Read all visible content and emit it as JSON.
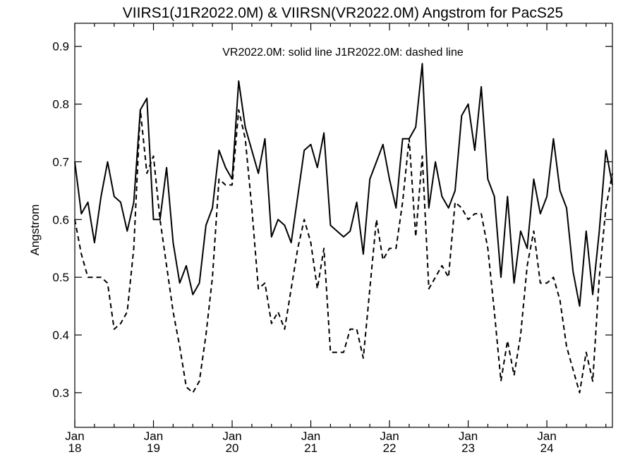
{
  "chart_data": {
    "type": "line",
    "title": "VIIRS1(J1R2022.0M) & VIIRSN(VR2022.0M)  Angstrom for PacS25",
    "xlabel": "",
    "ylabel": "Angstrom",
    "annotation": "VR2022.0M: solid line   J1R2022.0M: dashed line",
    "x_start": "2018-01",
    "x_step": "1 month",
    "xlim": [
      "2018-01",
      "2024-11"
    ],
    "ylim": [
      0.24,
      0.94
    ],
    "yticks": [
      0.3,
      0.4,
      0.5,
      0.6,
      0.7,
      0.8,
      0.9
    ],
    "ytick_labels": [
      "0.3",
      "0.4",
      "0.5",
      "0.6",
      "0.7",
      "0.8",
      "0.9"
    ],
    "xticks": [
      {
        "date": "2018-01",
        "month": "Jan",
        "year": "18"
      },
      {
        "date": "2019-01",
        "month": "Jan",
        "year": "19"
      },
      {
        "date": "2020-01",
        "month": "Jan",
        "year": "20"
      },
      {
        "date": "2021-01",
        "month": "Jan",
        "year": "21"
      },
      {
        "date": "2022-01",
        "month": "Jan",
        "year": "22"
      },
      {
        "date": "2023-01",
        "month": "Jan",
        "year": "23"
      },
      {
        "date": "2024-01",
        "month": "Jan",
        "year": "24"
      }
    ],
    "grid": false,
    "legend": "none",
    "series": [
      {
        "style": "solid",
        "color": "#000000",
        "values": [
          0.7,
          0.61,
          0.63,
          0.56,
          0.64,
          0.7,
          0.64,
          0.63,
          0.58,
          0.63,
          0.79,
          0.81,
          0.6,
          0.6,
          0.69,
          0.56,
          0.49,
          0.52,
          0.47,
          0.49,
          0.59,
          0.62,
          0.72,
          0.69,
          0.67,
          0.84,
          0.76,
          0.72,
          0.68,
          0.74,
          0.57,
          0.6,
          0.59,
          0.56,
          0.64,
          0.72,
          0.73,
          0.69,
          0.75,
          0.59,
          0.58,
          0.57,
          0.58,
          0.63,
          0.54,
          0.67,
          0.7,
          0.73,
          0.67,
          0.62,
          0.74,
          0.74,
          0.76,
          0.87,
          0.62,
          0.7,
          0.64,
          0.62,
          0.65,
          0.78,
          0.8,
          0.72,
          0.83,
          0.67,
          0.64,
          0.5,
          0.64,
          0.49,
          0.58,
          0.55,
          0.67,
          0.61,
          0.64,
          0.74,
          0.65,
          0.62,
          0.51,
          0.45,
          0.58,
          0.47,
          0.58,
          0.72,
          0.66
        ]
      },
      {
        "style": "dashed",
        "color": "#000000",
        "values": [
          0.6,
          0.54,
          0.5,
          0.5,
          0.5,
          0.49,
          0.41,
          0.42,
          0.44,
          0.55,
          0.79,
          0.68,
          0.71,
          0.6,
          0.52,
          0.44,
          0.38,
          0.31,
          0.3,
          0.32,
          0.4,
          0.5,
          0.67,
          0.66,
          0.66,
          0.79,
          0.74,
          0.62,
          0.48,
          0.49,
          0.42,
          0.44,
          0.41,
          0.48,
          0.55,
          0.6,
          0.56,
          0.48,
          0.55,
          0.37,
          0.37,
          0.37,
          0.41,
          0.41,
          0.36,
          0.48,
          0.6,
          0.53,
          0.55,
          0.55,
          0.63,
          0.74,
          0.57,
          0.71,
          0.48,
          0.5,
          0.52,
          0.5,
          0.63,
          0.62,
          0.6,
          0.61,
          0.61,
          0.55,
          0.44,
          0.32,
          0.39,
          0.33,
          0.4,
          0.52,
          0.58,
          0.49,
          0.49,
          0.5,
          0.46,
          0.38,
          0.34,
          0.3,
          0.37,
          0.32,
          0.5,
          0.62,
          0.68
        ]
      }
    ]
  }
}
